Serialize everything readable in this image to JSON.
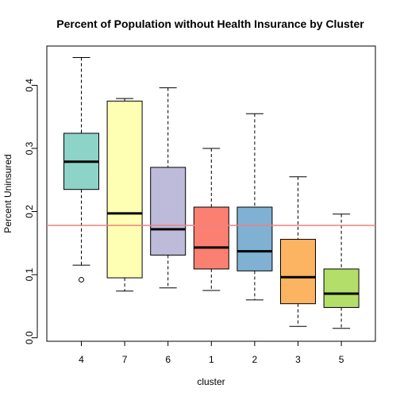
{
  "chart_data": {
    "type": "boxplot",
    "title": "Percent of Population without Health Insurance by Cluster",
    "xlabel": "cluster",
    "ylabel": "Percent Uninsured",
    "ylim": [
      0.0,
      0.44
    ],
    "yticks": [
      "0.0",
      "0.1",
      "0.2",
      "0.3",
      "0.4"
    ],
    "yticks_values": [
      0.0,
      0.1,
      0.2,
      0.3,
      0.4
    ],
    "reference_line": {
      "value": 0.178,
      "color": "#f08080"
    },
    "grid": false,
    "boxes": [
      {
        "category": "4",
        "color": "#8dd3c7",
        "whisker_low": 0.115,
        "q1": 0.235,
        "median": 0.279,
        "q3": 0.324,
        "whisker_high": 0.444,
        "outliers": [
          0.092
        ]
      },
      {
        "category": "7",
        "color": "#ffffb3",
        "whisker_low": 0.074,
        "q1": 0.095,
        "median": 0.197,
        "q3": 0.375,
        "whisker_high": 0.379,
        "outliers": []
      },
      {
        "category": "6",
        "color": "#bebada",
        "whisker_low": 0.079,
        "q1": 0.131,
        "median": 0.172,
        "q3": 0.27,
        "whisker_high": 0.396,
        "outliers": []
      },
      {
        "category": "1",
        "color": "#fb8072",
        "whisker_low": 0.075,
        "q1": 0.109,
        "median": 0.143,
        "q3": 0.207,
        "whisker_high": 0.3,
        "outliers": []
      },
      {
        "category": "2",
        "color": "#80b1d3",
        "whisker_low": 0.06,
        "q1": 0.106,
        "median": 0.137,
        "q3": 0.207,
        "whisker_high": 0.355,
        "outliers": []
      },
      {
        "category": "3",
        "color": "#fdb462",
        "whisker_low": 0.018,
        "q1": 0.054,
        "median": 0.096,
        "q3": 0.156,
        "whisker_high": 0.255,
        "outliers": []
      },
      {
        "category": "5",
        "color": "#b3de69",
        "whisker_low": 0.015,
        "q1": 0.048,
        "median": 0.07,
        "q3": 0.109,
        "whisker_high": 0.196,
        "outliers": []
      }
    ]
  }
}
